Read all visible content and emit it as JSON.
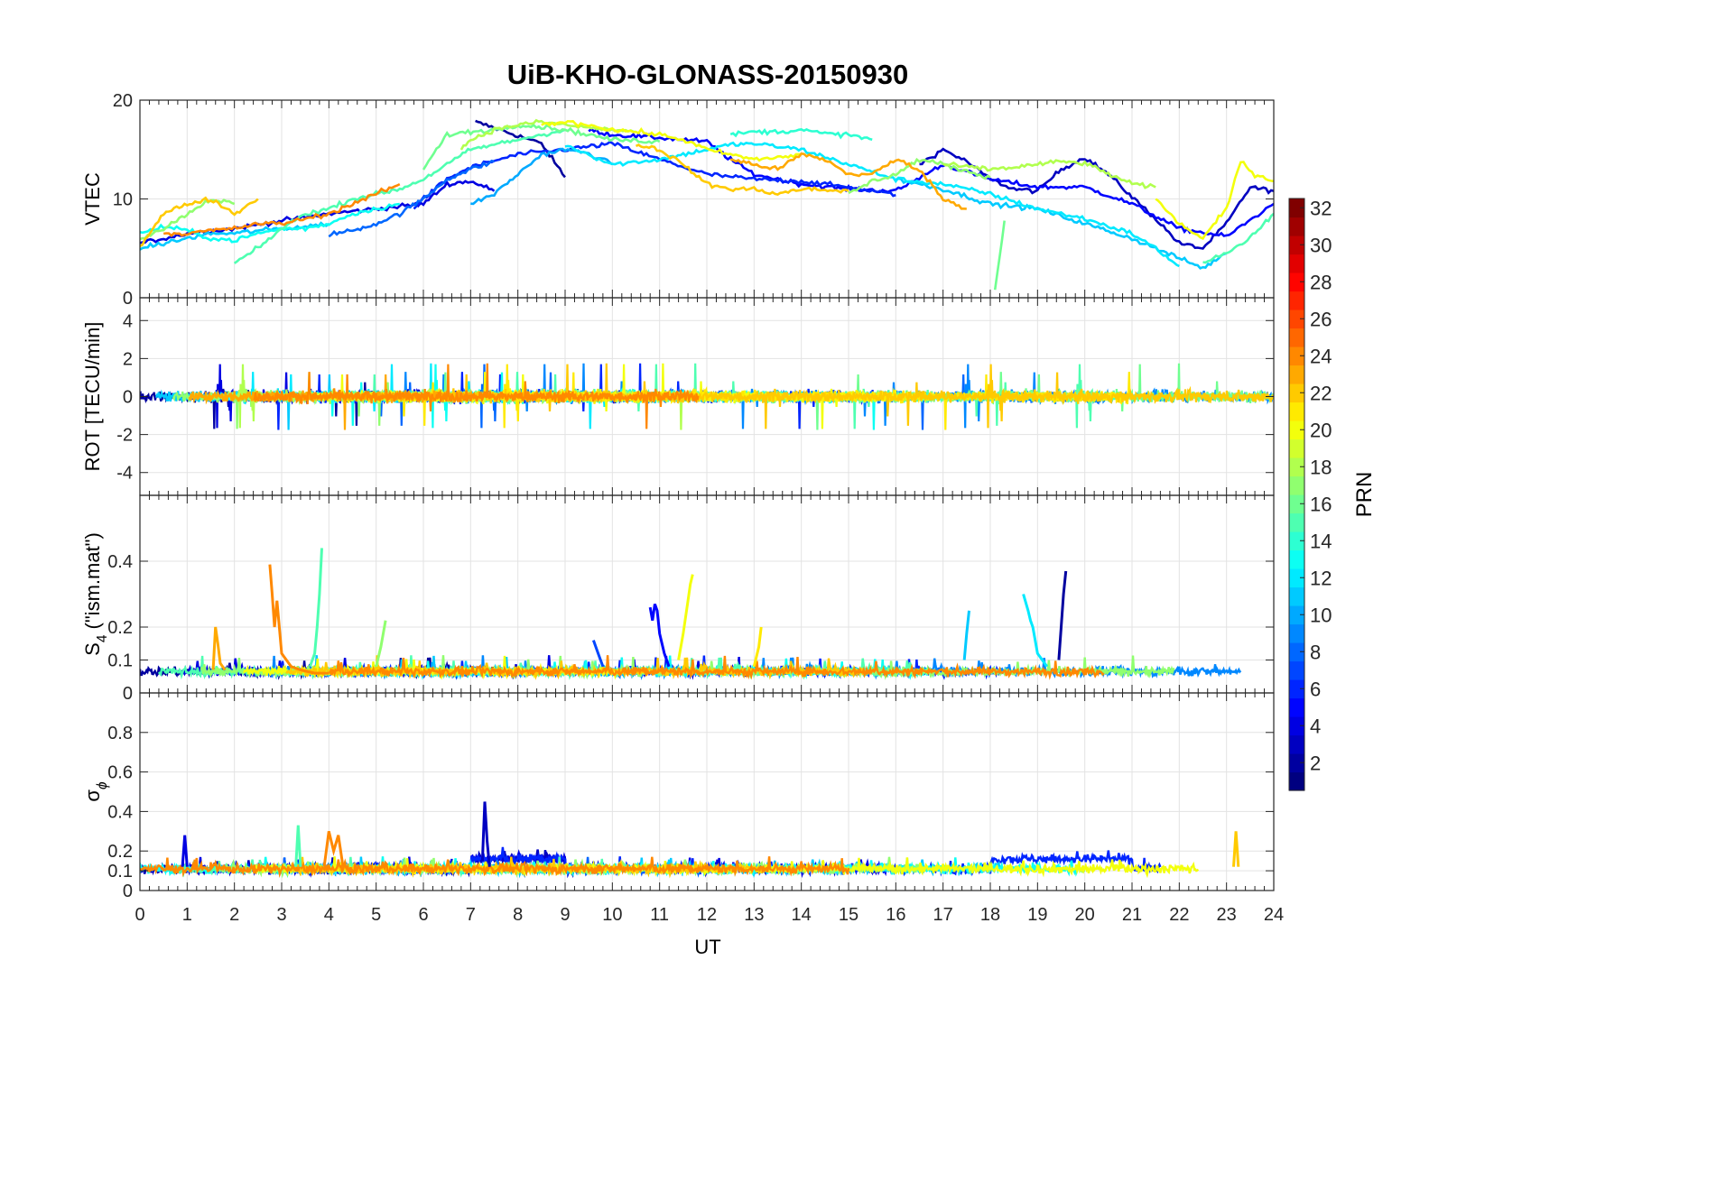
{
  "chart_data": {
    "type": "line",
    "title": "UiB-KHO-GLONASS-20150930",
    "xlabel": "UT",
    "xlim": [
      0,
      24
    ],
    "xticks": [
      "0",
      "1",
      "2",
      "3",
      "4",
      "5",
      "6",
      "7",
      "8",
      "9",
      "10",
      "11",
      "12",
      "13",
      "14",
      "15",
      "16",
      "17",
      "18",
      "19",
      "20",
      "21",
      "22",
      "23",
      "24"
    ],
    "grid": true,
    "panels": [
      {
        "id": "vtec",
        "ylabel_html": "VTEC",
        "ylim": [
          0,
          20
        ],
        "yticks": [
          0,
          10,
          20
        ],
        "yticklabels": [
          "0",
          "10",
          "20"
        ],
        "series": [
          {
            "prn": 2,
            "x": [
              7.1,
              7.5,
              8.0,
              8.5,
              9.0
            ],
            "y": [
              17.8,
              17.2,
              16.4,
              15.6,
              12.2
            ]
          },
          {
            "prn": 3,
            "x": [
              16.5,
              17.0,
              17.5,
              18.0,
              18.5,
              19.0,
              19.5,
              20.0,
              20.5,
              21.0,
              21.5,
              22.0,
              22.5,
              23.0,
              23.5,
              24.0
            ],
            "y": [
              13.5,
              15.0,
              13.8,
              12.0,
              11.0,
              10.8,
              13.0,
              14.2,
              12.5,
              10.2,
              8.0,
              5.5,
              5.0,
              7.5,
              11.2,
              10.8
            ]
          },
          {
            "prn": 4,
            "x": [
              0.0,
              1.0,
              2.0,
              3.0,
              4.0,
              5.0,
              6.0,
              6.5,
              7.0,
              7.5
            ],
            "y": [
              5.5,
              6.5,
              7.0,
              7.8,
              8.5,
              9.0,
              9.5,
              11.5,
              11.8,
              10.8
            ]
          },
          {
            "prn": 5,
            "x": [
              9.5,
              10.0,
              11.0,
              12.0,
              12.5,
              13.0,
              14.0,
              15.0,
              16.0,
              17.0,
              18.0,
              19.0,
              20.0,
              21.0,
              22.0,
              23.0,
              24.0
            ],
            "y": [
              17.0,
              16.5,
              16.2,
              15.8,
              14.0,
              12.5,
              11.5,
              11.0,
              10.8,
              13.5,
              12.0,
              11.2,
              11.2,
              9.5,
              7.0,
              6.2,
              9.5
            ]
          },
          {
            "prn": 6,
            "x": [
              5.8,
              6.5,
              7.0,
              8.0,
              9.0,
              10.0,
              11.0,
              12.0,
              13.0,
              14.0,
              15.0,
              16.0
            ],
            "y": [
              9.2,
              12.0,
              13.2,
              14.5,
              15.0,
              15.6,
              14.0,
              12.5,
              12.0,
              11.8,
              11.2,
              10.4
            ]
          },
          {
            "prn": 8,
            "x": [
              4.0,
              4.5,
              5.0,
              5.5,
              6.0,
              6.5,
              7.0,
              7.5
            ],
            "y": [
              6.4,
              6.8,
              7.5,
              8.5,
              10.0,
              12.0,
              13.0,
              13.8
            ]
          },
          {
            "prn": 10,
            "x": [
              7.0,
              7.5,
              8.0,
              8.5,
              9.0,
              9.5,
              10.0
            ],
            "y": [
              9.5,
              10.5,
              12.5,
              14.5,
              15.0,
              14.6,
              13.5
            ]
          },
          {
            "prn": 11,
            "x": [
              0.0,
              0.5,
              1.0,
              1.5,
              2.0,
              2.5,
              3.0,
              3.5,
              4.0
            ],
            "y": [
              5.0,
              5.5,
              6.0,
              6.5,
              6.5,
              6.8,
              7.0,
              7.2,
              7.5
            ]
          },
          {
            "prn": 11,
            "x": [
              16.0,
              17.0,
              18.0,
              19.0,
              20.0,
              21.0,
              22.0,
              22.5,
              23.0
            ],
            "y": [
              12.0,
              11.0,
              9.5,
              9.0,
              7.5,
              6.0,
              4.0,
              3.0,
              4.5
            ]
          },
          {
            "prn": 12,
            "x": [
              9.0,
              10.0,
              11.0,
              12.0,
              12.5,
              13.0,
              14.0,
              15.0,
              16.0,
              17.0,
              18.0,
              19.0,
              20.0,
              21.0,
              21.5,
              22.0
            ],
            "y": [
              15.5,
              13.5,
              14.0,
              15.0,
              15.5,
              15.6,
              15.0,
              13.5,
              12.0,
              11.5,
              10.5,
              9.0,
              8.0,
              6.5,
              5.0,
              3.2
            ]
          },
          {
            "prn": 13,
            "x": [
              0.0,
              0.5,
              1.0,
              1.5,
              2.0,
              2.5,
              3.0,
              3.5,
              4.0,
              4.5,
              5.0,
              5.5
            ],
            "y": [
              6.5,
              7.2,
              6.8,
              6.0,
              5.8,
              6.5,
              7.0,
              7.0,
              7.5,
              8.5,
              9.0,
              9.5
            ]
          },
          {
            "prn": 14,
            "x": [
              12.5,
              13.0,
              13.5,
              14.0,
              14.5,
              15.0,
              15.5
            ],
            "y": [
              16.5,
              16.8,
              16.8,
              17.0,
              16.6,
              16.5,
              16.0
            ]
          },
          {
            "prn": 15,
            "x": [
              2.0,
              2.5,
              3.0,
              3.5,
              4.0,
              4.5,
              5.0,
              5.5,
              6.0,
              6.5,
              7.0,
              8.0,
              9.0
            ],
            "y": [
              3.5,
              5.0,
              7.0,
              8.5,
              9.0,
              10.0,
              10.5,
              11.0,
              12.0,
              13.5,
              15.0,
              16.0,
              17.0
            ]
          },
          {
            "prn": 15,
            "x": [
              22.5,
              23.0,
              23.5,
              24.0
            ],
            "y": [
              3.5,
              4.5,
              6.0,
              8.5
            ]
          },
          {
            "prn": 16,
            "x": [
              6.0,
              6.5,
              7.0,
              7.5,
              8.0,
              8.5,
              9.0,
              9.5,
              10.0,
              11.0
            ],
            "y": [
              13.0,
              16.5,
              16.8,
              17.0,
              17.5,
              17.3,
              17.0,
              16.5,
              16.0,
              15.8
            ]
          },
          {
            "prn": 16,
            "x": [
              18.1,
              18.3
            ],
            "y": [
              0.8,
              7.8
            ]
          },
          {
            "prn": 17,
            "x": [
              0.0,
              0.5,
              1.0,
              1.5,
              2.0
            ],
            "y": [
              6.0,
              7.0,
              8.5,
              10.0,
              9.5
            ]
          },
          {
            "prn": 17,
            "x": [
              15.0,
              15.5,
              16.0,
              16.5,
              17.0,
              17.5,
              18.0
            ],
            "y": [
              10.5,
              11.8,
              12.5,
              14.0,
              13.5,
              12.8,
              12.2
            ]
          },
          {
            "prn": 18,
            "x": [
              6.8,
              7.0,
              7.5,
              8.0,
              8.5,
              9.0,
              9.5,
              10.0,
              10.5
            ],
            "y": [
              15.0,
              16.0,
              17.0,
              17.5,
              17.8,
              17.5,
              17.2,
              17.0,
              16.8
            ]
          },
          {
            "prn": 18,
            "x": [
              17.0,
              18.0,
              18.5,
              19.0,
              19.5,
              20.0,
              21.0,
              21.5
            ],
            "y": [
              13.5,
              13.0,
              13.2,
              13.5,
              13.8,
              13.6,
              11.5,
              11.2
            ]
          },
          {
            "prn": 20,
            "x": [
              8.5,
              9.0,
              9.5,
              10.0,
              10.5,
              11.0,
              11.5,
              12.0,
              13.0,
              13.5,
              14.0
            ],
            "y": [
              17.5,
              17.8,
              17.5,
              17.0,
              16.8,
              16.5,
              16.0,
              15.0,
              14.0,
              14.2,
              14.5
            ]
          },
          {
            "prn": 20,
            "x": [
              21.5,
              22.0,
              22.5,
              23.0,
              23.3,
              23.6,
              24.0
            ],
            "y": [
              10.0,
              7.5,
              6.0,
              9.0,
              13.8,
              12.5,
              11.8
            ]
          },
          {
            "prn": 22,
            "x": [
              0.0,
              0.5,
              1.0,
              1.5,
              2.0,
              2.5
            ],
            "y": [
              5.2,
              8.5,
              9.5,
              10.0,
              8.5,
              10.0
            ]
          },
          {
            "prn": 22,
            "x": [
              10.5,
              11.0,
              11.5,
              12.0,
              12.5,
              13.0,
              13.5,
              14.0,
              15.0
            ],
            "y": [
              15.5,
              15.0,
              13.5,
              11.5,
              11.0,
              11.0,
              10.5,
              11.0,
              10.8
            ]
          },
          {
            "prn": 23,
            "x": [
              12.5,
              13.0,
              13.5,
              14.0,
              14.5,
              15.0,
              15.5,
              16.0,
              16.5,
              17.0,
              17.5
            ],
            "y": [
              14.0,
              13.5,
              13.0,
              14.5,
              14.0,
              12.5,
              12.5,
              14.0,
              13.0,
              10.0,
              9.0
            ]
          },
          {
            "prn": 24,
            "x": [
              0.5,
              1.0,
              1.5,
              2.0,
              2.5,
              3.0,
              3.5,
              4.0,
              4.5,
              5.0,
              5.5
            ],
            "y": [
              6.5,
              6.5,
              6.8,
              7.0,
              7.5,
              7.5,
              8.0,
              8.5,
              9.5,
              10.5,
              11.5
            ]
          }
        ]
      },
      {
        "id": "rot",
        "ylabel_html": "ROT [TECU/min]",
        "ylim": [
          -5.2,
          5.2
        ],
        "yticks": [
          -4,
          -2,
          0,
          2,
          4
        ],
        "yticklabels": [
          "-4",
          "-2",
          "0",
          "2",
          "4"
        ]
      },
      {
        "id": "s4",
        "ylabel_html": "S<tspan font-size='70%' dy='8'>4</tspan><tspan dy='-8'> (\"ism.mat\")</tspan>",
        "ylim": [
          0,
          0.6
        ],
        "yticks": [
          0,
          0.1,
          0.2,
          0.4
        ],
        "yticklabels": [
          "0",
          "0.1",
          "0.2",
          "0.4"
        ],
        "series": [
          {
            "prn": 24,
            "x": [
              2.75,
              2.8,
              2.85,
              2.9,
              3.0,
              3.2,
              3.4,
              3.7,
              4.0
            ],
            "y": [
              0.39,
              0.3,
              0.2,
              0.28,
              0.12,
              0.08,
              0.07,
              0.06,
              0.06
            ]
          },
          {
            "prn": 15,
            "x": [
              3.6,
              3.7,
              3.75,
              3.8,
              3.85
            ],
            "y": [
              0.08,
              0.12,
              0.2,
              0.3,
              0.44
            ]
          },
          {
            "prn": 23,
            "x": [
              1.55,
              1.6,
              1.65,
              1.7,
              1.8
            ],
            "y": [
              0.07,
              0.2,
              0.15,
              0.09,
              0.07
            ]
          },
          {
            "prn": 17,
            "x": [
              5.0,
              5.1,
              5.2
            ],
            "y": [
              0.08,
              0.14,
              0.22
            ]
          },
          {
            "prn": 5,
            "x": [
              10.8,
              10.85,
              10.9,
              10.95,
              11.0,
              11.1,
              11.2
            ],
            "y": [
              0.26,
              0.22,
              0.27,
              0.25,
              0.18,
              0.12,
              0.08
            ]
          },
          {
            "prn": 20,
            "x": [
              11.4,
              11.5,
              11.6,
              11.65,
              11.7
            ],
            "y": [
              0.1,
              0.18,
              0.28,
              0.33,
              0.36
            ]
          },
          {
            "prn": 2,
            "x": [
              19.45,
              19.5,
              19.55,
              19.6
            ],
            "y": [
              0.1,
              0.2,
              0.3,
              0.37
            ]
          },
          {
            "prn": 12,
            "x": [
              18.7,
              18.8,
              18.85,
              18.9,
              19.0,
              19.2
            ],
            "y": [
              0.3,
              0.25,
              0.22,
              0.2,
              0.12,
              0.08
            ]
          },
          {
            "prn": 11,
            "x": [
              17.45,
              17.5,
              17.55
            ],
            "y": [
              0.1,
              0.18,
              0.25
            ]
          },
          {
            "prn": 7,
            "x": [
              9.6,
              9.7,
              9.8
            ],
            "y": [
              0.16,
              0.12,
              0.08
            ]
          },
          {
            "prn": 21,
            "x": [
              13.0,
              13.1,
              13.15
            ],
            "y": [
              0.08,
              0.14,
              0.2
            ]
          }
        ]
      },
      {
        "id": "sigma",
        "ylabel_html": "σ<tspan font-size='70%' dy='8' font-style='italic'>ϕ</tspan>",
        "ylim": [
          0,
          1.0
        ],
        "yticks": [
          0,
          0.1,
          0.2,
          0.4,
          0.6,
          0.8
        ],
        "yticklabels": [
          "0",
          "0.1",
          "0.2",
          "0.4",
          "0.6",
          "0.8"
        ],
        "series": [
          {
            "prn": 3,
            "x": [
              7.25,
              7.3,
              7.35,
              7.4
            ],
            "y": [
              0.15,
              0.45,
              0.25,
              0.12
            ]
          },
          {
            "prn": 15,
            "x": [
              3.3,
              3.35,
              3.4
            ],
            "y": [
              0.12,
              0.33,
              0.12
            ]
          },
          {
            "prn": 22,
            "x": [
              23.15,
              23.2,
              23.25
            ],
            "y": [
              0.12,
              0.3,
              0.12
            ]
          },
          {
            "prn": 4,
            "x": [
              0.9,
              0.95,
              1.0
            ],
            "y": [
              0.12,
              0.28,
              0.12
            ]
          },
          {
            "prn": 24,
            "x": [
              3.9,
              4.0,
              4.1,
              4.2,
              4.3
            ],
            "y": [
              0.12,
              0.3,
              0.2,
              0.28,
              0.12
            ]
          }
        ]
      }
    ],
    "colorbar": {
      "label": "PRN",
      "range": [
        1,
        32
      ],
      "ticks": [
        "2",
        "4",
        "6",
        "8",
        "10",
        "12",
        "14",
        "16",
        "18",
        "20",
        "22",
        "24",
        "26",
        "28",
        "30",
        "32"
      ],
      "colormap": "jet"
    }
  }
}
